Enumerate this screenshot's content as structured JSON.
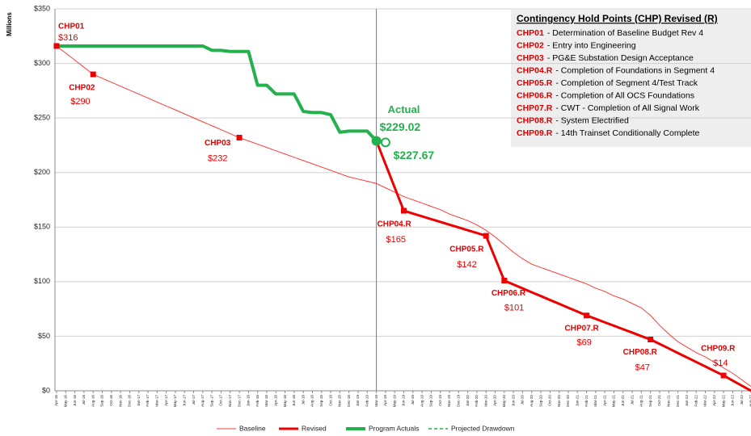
{
  "chart_data": {
    "type": "line",
    "y_axis_label": "Millions",
    "categories": [
      "Apr-16",
      "May-16",
      "Jun-16",
      "Jul-16",
      "Aug-16",
      "Sep-16",
      "Oct-16",
      "Nov-16",
      "Dec-16",
      "Jan-17",
      "Feb-17",
      "Mar-17",
      "Apr-17",
      "May-17",
      "Jun-17",
      "Jul-17",
      "Aug-17",
      "Sep-17",
      "Oct-17",
      "Nov-17",
      "Dec-17",
      "Jan-18",
      "Feb-18",
      "Mar-18",
      "Apr-18",
      "May-18",
      "Jun-18",
      "Jul-18",
      "Aug-18",
      "Sep-18",
      "Oct-18",
      "Nov-18",
      "Dec-18",
      "Jan-19",
      "Feb-19",
      "Mar-19",
      "Apr-19",
      "May-19",
      "Jun-19",
      "Jul-19",
      "Aug-19",
      "Sep-19",
      "Oct-19",
      "Nov-19",
      "Dec-19",
      "Jan-20",
      "Feb-20",
      "Mar-20",
      "Apr-20",
      "May-20",
      "Jun-20",
      "Jul-20",
      "Aug-20",
      "Sep-20",
      "Oct-20",
      "Nov-20",
      "Dec-20",
      "Jan-21",
      "Feb-21",
      "Mar-21",
      "Apr-21",
      "May-21",
      "Jun-21",
      "Jul-21",
      "Aug-21",
      "Sep-21",
      "Oct-21",
      "Nov-21",
      "Dec-21",
      "Jan-22",
      "Feb-22",
      "Mar-22",
      "Apr-22",
      "May-22",
      "Jun-22",
      "Jul-22",
      "Aug-22"
    ],
    "series": [
      {
        "name": "Baseline",
        "color": "#ff3b3b",
        "width": 1,
        "values": [
          316,
          309.5,
          303,
          296.5,
          290,
          286.4,
          282.8,
          279.1,
          275.5,
          271.9,
          268.3,
          264.6,
          261,
          257.4,
          253.8,
          250.1,
          246.5,
          242.9,
          239.3,
          235.6,
          232,
          229,
          226,
          223,
          220,
          217,
          214,
          211,
          208,
          205,
          202,
          199,
          196,
          194,
          192,
          190,
          186,
          182,
          178,
          175,
          172,
          169,
          166,
          162,
          159,
          156,
          152,
          147,
          141,
          134,
          127,
          121,
          116,
          113,
          110,
          107,
          104,
          101,
          98,
          94,
          91,
          87,
          84,
          80,
          76,
          69,
          60,
          52,
          45,
          40,
          35,
          31,
          26,
          21,
          16,
          10,
          4
        ]
      },
      {
        "name": "Revised",
        "color": "#ee0000",
        "width": 3,
        "values": [
          null,
          null,
          null,
          null,
          null,
          null,
          null,
          null,
          null,
          null,
          null,
          null,
          null,
          null,
          null,
          null,
          null,
          null,
          null,
          null,
          null,
          null,
          null,
          null,
          null,
          null,
          null,
          null,
          null,
          null,
          null,
          null,
          null,
          null,
          null,
          229.02,
          207.7,
          186.3,
          165,
          162.4,
          159.9,
          157.3,
          154.8,
          152.2,
          149.7,
          147.1,
          144.6,
          142,
          121.5,
          101,
          97.4,
          93.9,
          90.3,
          86.8,
          83.2,
          79.7,
          76.1,
          72.6,
          69,
          65.9,
          62.7,
          59.6,
          56.4,
          53.3,
          50.1,
          47,
          42.9,
          38.8,
          34.6,
          30.5,
          26.4,
          22.3,
          18.1,
          14,
          9.3,
          4.7,
          0
        ]
      },
      {
        "name": "Program Actuals",
        "color": "#22b14c",
        "width": 4,
        "end_marker": "filled-circle",
        "values": [
          316,
          316,
          316,
          316,
          316,
          316,
          316,
          316,
          316,
          316,
          316,
          316,
          316,
          316,
          316,
          316,
          316,
          312,
          312,
          311,
          311,
          311,
          280,
          280,
          272,
          272,
          272,
          256,
          255,
          255,
          253,
          237,
          238,
          238,
          238,
          229.02,
          null,
          null,
          null,
          null,
          null,
          null,
          null,
          null,
          null,
          null,
          null,
          null,
          null,
          null,
          null,
          null,
          null,
          null,
          null,
          null,
          null,
          null,
          null,
          null,
          null,
          null,
          null,
          null,
          null,
          null,
          null,
          null,
          null,
          null,
          null,
          null,
          null,
          null,
          null,
          null,
          null
        ]
      },
      {
        "name": "Projected Drawdown",
        "color": "#22b14c",
        "width": 1.5,
        "dash": true,
        "end_marker": "open-circle",
        "values": [
          null,
          null,
          null,
          null,
          null,
          null,
          null,
          null,
          null,
          null,
          null,
          null,
          null,
          null,
          null,
          null,
          null,
          null,
          null,
          null,
          null,
          null,
          null,
          null,
          null,
          null,
          null,
          null,
          null,
          null,
          null,
          null,
          null,
          null,
          null,
          null,
          227.67,
          null,
          null,
          null,
          null,
          null,
          null,
          null,
          null,
          null,
          null,
          null,
          null,
          null,
          null,
          null,
          null,
          null,
          null,
          null,
          null,
          null,
          null,
          null,
          null,
          null,
          null,
          null,
          null,
          null,
          null,
          null,
          null,
          null,
          null,
          null,
          null,
          null,
          null,
          null,
          null
        ]
      }
    ],
    "milestones": [
      {
        "label": "CHP01",
        "x": "Apr-16",
        "value": 316,
        "value_label": "$316"
      },
      {
        "label": "CHP02",
        "x": "Aug-16",
        "value": 290,
        "value_label": "$290"
      },
      {
        "label": "CHP03",
        "x": "Dec-17",
        "value": 232,
        "value_label": "$232"
      },
      {
        "label": "CHP04.R",
        "x": "Jun-19",
        "value": 165,
        "value_label": "$165"
      },
      {
        "label": "CHP05.R",
        "x": "Mar-20",
        "value": 142,
        "value_label": "$142"
      },
      {
        "label": "CHP06.R",
        "x": "May-20",
        "value": 101,
        "value_label": "$101"
      },
      {
        "label": "CHP07.R",
        "x": "Feb-21",
        "value": 69,
        "value_label": "$69"
      },
      {
        "label": "CHP08.R",
        "x": "Sep-21",
        "value": 47,
        "value_label": "$47"
      },
      {
        "label": "CHP09.R",
        "x": "May-22",
        "value": 14,
        "value_label": "$14"
      }
    ],
    "annotations": [
      {
        "text": "Actual"
      },
      {
        "value": 229.02,
        "label": "$229.02"
      },
      {
        "value": 227.67,
        "label": "$227.67"
      }
    ],
    "reference_x": "Mar-19",
    "ylim": [
      0,
      350
    ],
    "yticks": [
      {
        "value": 0,
        "label": "$0"
      },
      {
        "value": 50,
        "label": "$50"
      },
      {
        "value": 100,
        "label": "$100"
      },
      {
        "value": 150,
        "label": "$150"
      },
      {
        "value": 200,
        "label": "$200"
      },
      {
        "value": 250,
        "label": "$250"
      },
      {
        "value": 300,
        "label": "$300"
      },
      {
        "value": 350,
        "label": "$350"
      }
    ],
    "grid": true,
    "legend_position": "bottom",
    "legend_box": {
      "title": "Contingency Hold Points (CHP) Revised (R)",
      "items": [
        {
          "code": "CHP01",
          "text": "- Determination of Baseline Budget Rev 4"
        },
        {
          "code": "CHP02",
          "text": "- Entry into Engineering"
        },
        {
          "code": "CHP03",
          "text": "- PG&E Substation Design Acceptance"
        },
        {
          "code": "CHP04.R",
          "text": "- Completion of Foundations in Segment 4"
        },
        {
          "code": "CHP05.R",
          "text": "- Completion of Segment  4/Test Track"
        },
        {
          "code": "CHP06.R",
          "text": "- Completion of All OCS Foundations"
        },
        {
          "code": "CHP07.R",
          "text": "- CWT - Completion of All Signal Work"
        },
        {
          "code": "CHP08.R",
          "text": "- System Electrified"
        },
        {
          "code": "CHP09.R",
          "text": "- 14th Trainset Conditionally Complete"
        }
      ]
    }
  }
}
